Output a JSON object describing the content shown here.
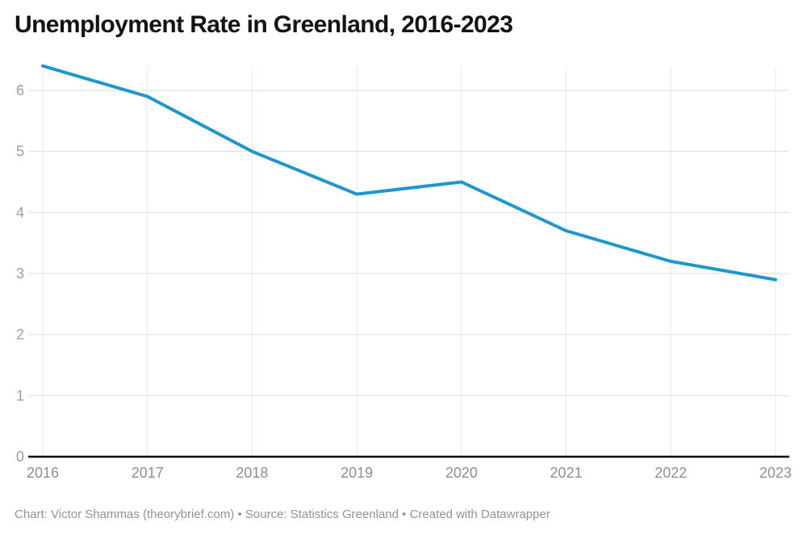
{
  "header": {
    "title": "Unemployment Rate in Greenland, 2016-2023"
  },
  "footer": {
    "text": "Chart: Victor Shammas (theorybrief.com) • Source: Statistics Greenland • Created with Datawrapper"
  },
  "chart_data": {
    "type": "line",
    "title": "Unemployment Rate in Greenland, 2016-2023",
    "categories": [
      "2016",
      "2017",
      "2018",
      "2019",
      "2020",
      "2021",
      "2022",
      "2023"
    ],
    "values": [
      6.4,
      5.9,
      5.0,
      4.3,
      4.5,
      3.7,
      3.2,
      2.9
    ],
    "xlabel": "",
    "ylabel": "",
    "ylim": [
      0,
      6.5
    ],
    "yticks": [
      0,
      1,
      2,
      3,
      4,
      5,
      6
    ],
    "grid": true,
    "legend": false,
    "markers": false
  },
  "colors": {
    "line": "#2097ca",
    "h_grid": "#dedede",
    "v_grid": "#e9e9e9",
    "axis": "#000000",
    "y_tick_label": "#9e9e9e",
    "x_tick_label": "#8f8f8f",
    "title": "#131313",
    "footer": "#939393"
  }
}
